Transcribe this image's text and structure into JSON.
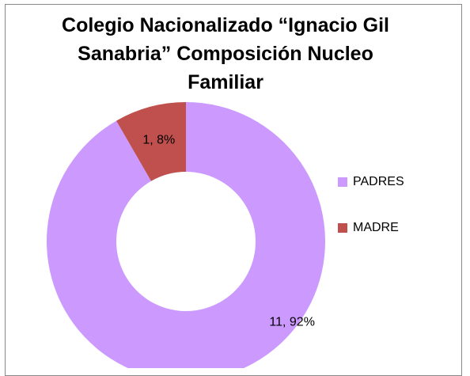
{
  "chart_data": {
    "type": "pie",
    "donut": true,
    "title": "Colegio Nacionalizado “Ignacio Gil Sanabria” Composición Nucleo Familiar",
    "categories": [
      "PADRES",
      "MADRE"
    ],
    "values": [
      11,
      1
    ],
    "value_labels": [
      "11, 92%",
      "1, 8%"
    ],
    "colors": [
      "#cc99ff",
      "#c0504d"
    ],
    "legend": "right"
  }
}
